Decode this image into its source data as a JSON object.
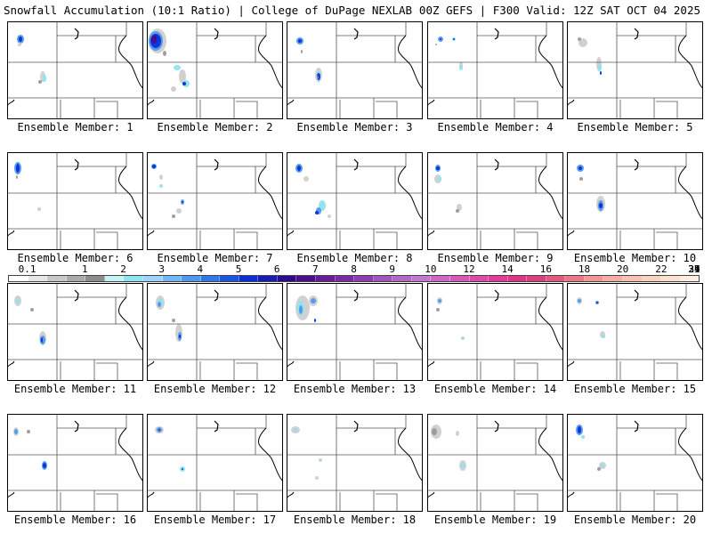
{
  "header": {
    "title_left": "Snowfall Accumulation (10:1 Ratio) | College of DuPage NEXLAB",
    "title_right": "00Z GEFS | F300 Valid: 12Z SAT OCT 04 2025"
  },
  "legend": {
    "labels": [
      "0.1",
      "1",
      "2",
      "3",
      "4",
      "5",
      "6",
      "7",
      "8",
      "9",
      "10",
      "12",
      "14",
      "16",
      "18",
      "20",
      "22",
      "24",
      "27",
      "31",
      "35",
      "39"
    ],
    "colors": [
      "#ffffff",
      "#e6e6e6",
      "#c8c8c8",
      "#aaaaaa",
      "#8c8c8c",
      "#c6f2f7",
      "#8ee4ef",
      "#9ed2ff",
      "#74b6f6",
      "#4f98ee",
      "#2f79e6",
      "#1c56e0",
      "#0a2fd6",
      "#1a1ab4",
      "#2c0c8c",
      "#4a0f8a",
      "#661c96",
      "#7a2aa4",
      "#8e3db0",
      "#a353bd",
      "#b368c7",
      "#c178cf",
      "#cc69c6",
      "#d858b8",
      "#de4aa8",
      "#e03c98",
      "#e03487",
      "#d8407f",
      "#e2587f",
      "#ea7886",
      "#f09694",
      "#f4aea4",
      "#f7c2b2",
      "#f9d2c0",
      "#fbe0cf",
      "#fdeee2"
    ],
    "label_offsets": [
      0,
      3,
      5,
      7,
      9,
      11,
      13,
      15,
      17,
      19,
      21,
      23,
      25,
      27,
      29,
      31,
      33,
      35,
      37.4,
      39.6,
      42,
      44.3
    ]
  },
  "colors": {
    "border": "#000000",
    "state_lines": "#555555",
    "snow_light": "#cfcfcf",
    "snow_mid": "#9a9a9a",
    "snow_cyan": "#8ee4ef",
    "snow_blue": "#4f98ee",
    "snow_deep": "#0a2fd6",
    "snow_purple": "#4a0f8a",
    "snow_magenta": "#d858b8"
  },
  "panels": [
    {
      "label": "Ensemble Member: 1"
    },
    {
      "label": "Ensemble Member: 2"
    },
    {
      "label": "Ensemble Member: 3"
    },
    {
      "label": "Ensemble Member: 4"
    },
    {
      "label": "Ensemble Member: 5"
    },
    {
      "label": "Ensemble Member: 6"
    },
    {
      "label": "Ensemble Member: 7"
    },
    {
      "label": "Ensemble Member: 8"
    },
    {
      "label": "Ensemble Member: 9"
    },
    {
      "label": "Ensemble Member: 10"
    },
    {
      "label": "Ensemble Member: 11"
    },
    {
      "label": "Ensemble Member: 12"
    },
    {
      "label": "Ensemble Member: 13"
    },
    {
      "label": "Ensemble Member: 14"
    },
    {
      "label": "Ensemble Member: 15"
    },
    {
      "label": "Ensemble Member: 16"
    },
    {
      "label": "Ensemble Member: 17"
    },
    {
      "label": "Ensemble Member: 18"
    },
    {
      "label": "Ensemble Member: 19"
    },
    {
      "label": "Ensemble Member: 20"
    }
  ]
}
